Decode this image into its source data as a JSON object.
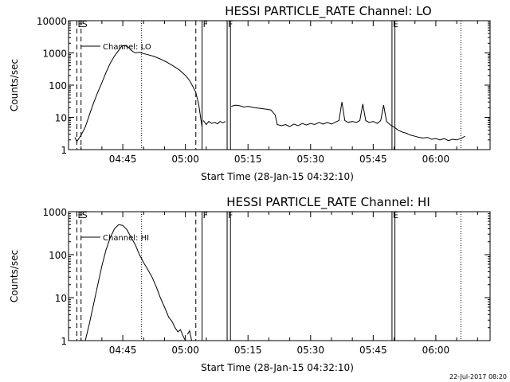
{
  "footer": {
    "timestamp": "22-Jul-2017 08:20"
  },
  "chart_data": [
    {
      "type": "line",
      "title": "HESSI PARTICLE_RATE Channel: LO",
      "xlabel": "Start Time (28-Jan-15 04:32:10)",
      "ylabel": "Counts/sec",
      "yscale": "log",
      "xlim": [
        "04:32",
        "06:13"
      ],
      "ylim": [
        1,
        10000
      ],
      "x_ticks": [
        "04:45",
        "05:00",
        "05:15",
        "05:30",
        "05:45",
        "06:00"
      ],
      "y_ticks": [
        "1",
        "10",
        "100",
        "1000",
        "10000"
      ],
      "legend": {
        "label": "Channel: LO",
        "placement": "top-left"
      },
      "markers": [
        {
          "time": "04:34.0",
          "style": "dashed",
          "label": "E"
        },
        {
          "time": "04:35.0",
          "style": "dashed",
          "label": "S"
        },
        {
          "time": "04:49.5",
          "style": "dotted",
          "label": ""
        },
        {
          "time": "05:02.5",
          "style": "dashed",
          "label": ""
        },
        {
          "time": "05:04.0",
          "style": "solid",
          "label": "F"
        },
        {
          "time": "05:10.0",
          "style": "solid",
          "label": "F"
        },
        {
          "time": "05:10.8",
          "style": "solid",
          "label": ""
        },
        {
          "time": "05:49.5",
          "style": "solid",
          "label": "E"
        },
        {
          "time": "05:50.2",
          "style": "solid",
          "label": ""
        },
        {
          "time": "06:06.0",
          "style": "dotted",
          "label": ""
        }
      ],
      "series": [
        {
          "name": "Channel: LO",
          "segments": [
            [
              [
                "04:33.5",
                2.4
              ],
              [
                "04:34.0",
                1.8
              ],
              [
                "04:35.0",
                2.8
              ],
              [
                "04:36.0",
                5
              ],
              [
                "04:37.0",
                12
              ],
              [
                "04:38.0",
                28
              ],
              [
                "04:39.0",
                60
              ],
              [
                "04:40.0",
                120
              ],
              [
                "04:41.0",
                250
              ],
              [
                "04:42.0",
                480
              ],
              [
                "04:43.0",
                800
              ],
              [
                "04:44.0",
                1200
              ],
              [
                "04:44.8",
                1650
              ],
              [
                "04:45.5",
                1700
              ],
              [
                "04:46.5",
                1450
              ],
              [
                "04:47.0",
                1200
              ],
              [
                "04:48.0",
                1000
              ],
              [
                "04:49.0",
                1050
              ],
              [
                "04:50.0",
                950
              ],
              [
                "04:51.0",
                880
              ],
              [
                "04:52.5",
                780
              ],
              [
                "04:54.0",
                650
              ],
              [
                "04:55.5",
                520
              ],
              [
                "04:57.0",
                400
              ],
              [
                "04:58.5",
                300
              ],
              [
                "05:00.0",
                200
              ],
              [
                "05:01.0",
                140
              ],
              [
                "05:01.8",
                90
              ],
              [
                "05:02.5",
                60
              ],
              [
                "05:03.2",
                25
              ],
              [
                "05:03.7",
                9
              ],
              [
                "05:04.0",
                5
              ]
            ],
            [
              [
                "05:04.3",
                8
              ],
              [
                "05:05.0",
                6
              ],
              [
                "05:05.6",
                7.5
              ],
              [
                "05:06.3",
                6.5
              ],
              [
                "05:07.0",
                7
              ],
              [
                "05:07.7",
                6.3
              ],
              [
                "05:08.3",
                7.5
              ],
              [
                "05:09.0",
                6.8
              ],
              [
                "05:09.6",
                7.5
              ]
            ],
            [
              [
                "05:11.0",
                22
              ],
              [
                "05:12.0",
                24
              ],
              [
                "05:13.0",
                23
              ],
              [
                "05:14.0",
                21
              ],
              [
                "05:15.0",
                22
              ],
              [
                "05:16.5",
                20
              ],
              [
                "05:18.0",
                19
              ],
              [
                "05:19.5",
                18
              ],
              [
                "05:20.5",
                17
              ],
              [
                "05:21.5",
                12
              ],
              [
                "05:22.0",
                6
              ],
              [
                "05:23.0",
                5.5
              ],
              [
                "05:24.0",
                6
              ],
              [
                "05:25.0",
                5.2
              ],
              [
                "05:26.0",
                6.2
              ],
              [
                "05:27.0",
                5.5
              ],
              [
                "05:28.0",
                6.5
              ],
              [
                "05:29.0",
                5.8
              ],
              [
                "05:30.0",
                6.5
              ],
              [
                "05:31.0",
                6
              ],
              [
                "05:32.0",
                7
              ],
              [
                "05:33.0",
                6.2
              ],
              [
                "05:34.0",
                7
              ],
              [
                "05:35.0",
                6.2
              ],
              [
                "05:36.0",
                7.2
              ],
              [
                "05:36.8",
                8
              ],
              [
                "05:37.5",
                30
              ],
              [
                "05:38.2",
                8
              ],
              [
                "05:39.0",
                7
              ],
              [
                "05:40.0",
                7.5
              ],
              [
                "05:41.0",
                7
              ],
              [
                "05:41.8",
                8
              ],
              [
                "05:42.5",
                26
              ],
              [
                "05:43.2",
                8
              ],
              [
                "05:44.0",
                7
              ],
              [
                "05:45.0",
                7.5
              ],
              [
                "05:46.0",
                6.5
              ],
              [
                "05:46.8",
                8
              ],
              [
                "05:47.5",
                24
              ],
              [
                "05:48.2",
                7.5
              ],
              [
                "05:49.0",
                6
              ],
              [
                "05:50.0",
                5
              ],
              [
                "05:51.0",
                4
              ],
              [
                "05:52.0",
                3.5
              ],
              [
                "05:53.0",
                3.2
              ],
              [
                "05:54.0",
                2.8
              ],
              [
                "05:55.0",
                2.6
              ],
              [
                "05:56.0",
                2.4
              ],
              [
                "05:57.0",
                2.3
              ],
              [
                "05:58.0",
                2.4
              ],
              [
                "05:59.0",
                2.1
              ],
              [
                "06:00.0",
                2.2
              ],
              [
                "06:01.0",
                2
              ],
              [
                "06:02.0",
                2.2
              ],
              [
                "06:03.0",
                1.9
              ],
              [
                "06:04.0",
                2.1
              ],
              [
                "06:05.0",
                2
              ],
              [
                "06:06.0",
                2.2
              ],
              [
                "06:07.0",
                2.6
              ]
            ]
          ]
        }
      ]
    },
    {
      "type": "line",
      "title": "HESSI PARTICLE_RATE Channel: HI",
      "xlabel": "Start Time (28-Jan-15 04:32:10)",
      "ylabel": "Counts/sec",
      "yscale": "log",
      "xlim": [
        "04:32",
        "06:13"
      ],
      "ylim": [
        1,
        1000
      ],
      "x_ticks": [
        "04:45",
        "05:00",
        "05:15",
        "05:30",
        "05:45",
        "06:00"
      ],
      "y_ticks": [
        "1",
        "10",
        "100",
        "1000"
      ],
      "legend": {
        "label": "Channel: HI",
        "placement": "top-left"
      },
      "markers": [
        {
          "time": "04:34.0",
          "style": "dashed",
          "label": "E"
        },
        {
          "time": "04:35.0",
          "style": "dashed",
          "label": "S"
        },
        {
          "time": "04:49.5",
          "style": "dotted",
          "label": ""
        },
        {
          "time": "05:02.5",
          "style": "dashed",
          "label": ""
        },
        {
          "time": "05:04.0",
          "style": "solid",
          "label": "F"
        },
        {
          "time": "05:10.0",
          "style": "solid",
          "label": "F"
        },
        {
          "time": "05:10.8",
          "style": "solid",
          "label": ""
        },
        {
          "time": "05:49.5",
          "style": "solid",
          "label": "E"
        },
        {
          "time": "05:50.2",
          "style": "solid",
          "label": ""
        },
        {
          "time": "06:06.0",
          "style": "dotted",
          "label": ""
        }
      ],
      "series": [
        {
          "name": "Channel: HI",
          "segments": [
            [
              [
                "04:36.0",
                1
              ],
              [
                "04:37.0",
                2.5
              ],
              [
                "04:38.0",
                7
              ],
              [
                "04:39.0",
                20
              ],
              [
                "04:40.0",
                55
              ],
              [
                "04:41.0",
                130
              ],
              [
                "04:42.0",
                250
              ],
              [
                "04:43.0",
                400
              ],
              [
                "04:44.0",
                500
              ],
              [
                "04:45.0",
                480
              ],
              [
                "04:46.0",
                380
              ],
              [
                "04:47.0",
                250
              ],
              [
                "04:48.0",
                170
              ],
              [
                "04:49.0",
                100
              ],
              [
                "04:50.0",
                65
              ],
              [
                "04:51.0",
                45
              ],
              [
                "04:52.0",
                30
              ],
              [
                "04:53.0",
                18
              ],
              [
                "04:54.0",
                10
              ],
              [
                "04:55.0",
                6
              ],
              [
                "04:56.0",
                3.5
              ],
              [
                "04:56.8",
                2.8
              ],
              [
                "04:57.5",
                2
              ],
              [
                "04:58.2",
                1.6
              ],
              [
                "04:58.8",
                1.8
              ],
              [
                "04:59.4",
                1.3
              ],
              [
                "05:00.0",
                1
              ]
            ],
            [
              [
                "05:00.5",
                1.4
              ],
              [
                "05:01.0",
                1.7
              ],
              [
                "05:01.5",
                1
              ]
            ]
          ]
        }
      ]
    }
  ]
}
